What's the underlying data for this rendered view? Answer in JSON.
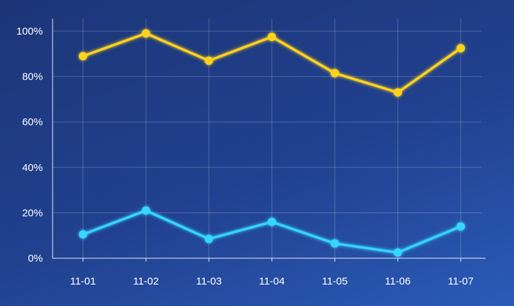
{
  "chart_data": {
    "type": "line",
    "categories": [
      "11-01",
      "11-02",
      "11-03",
      "11-04",
      "11-05",
      "11-06",
      "11-07"
    ],
    "series": [
      {
        "color": "#ffd21a",
        "values": [
          89,
          99,
          87,
          97.5,
          81.5,
          73,
          92.5
        ]
      },
      {
        "color": "#36d6ff",
        "values": [
          10.5,
          21,
          8.5,
          16,
          6.5,
          2.5,
          14
        ]
      }
    ],
    "yticks": [
      "0%",
      "20%",
      "40%",
      "60%",
      "80%",
      "100%"
    ],
    "ylim": [
      0,
      100
    ],
    "grid": true,
    "legend": "none"
  }
}
